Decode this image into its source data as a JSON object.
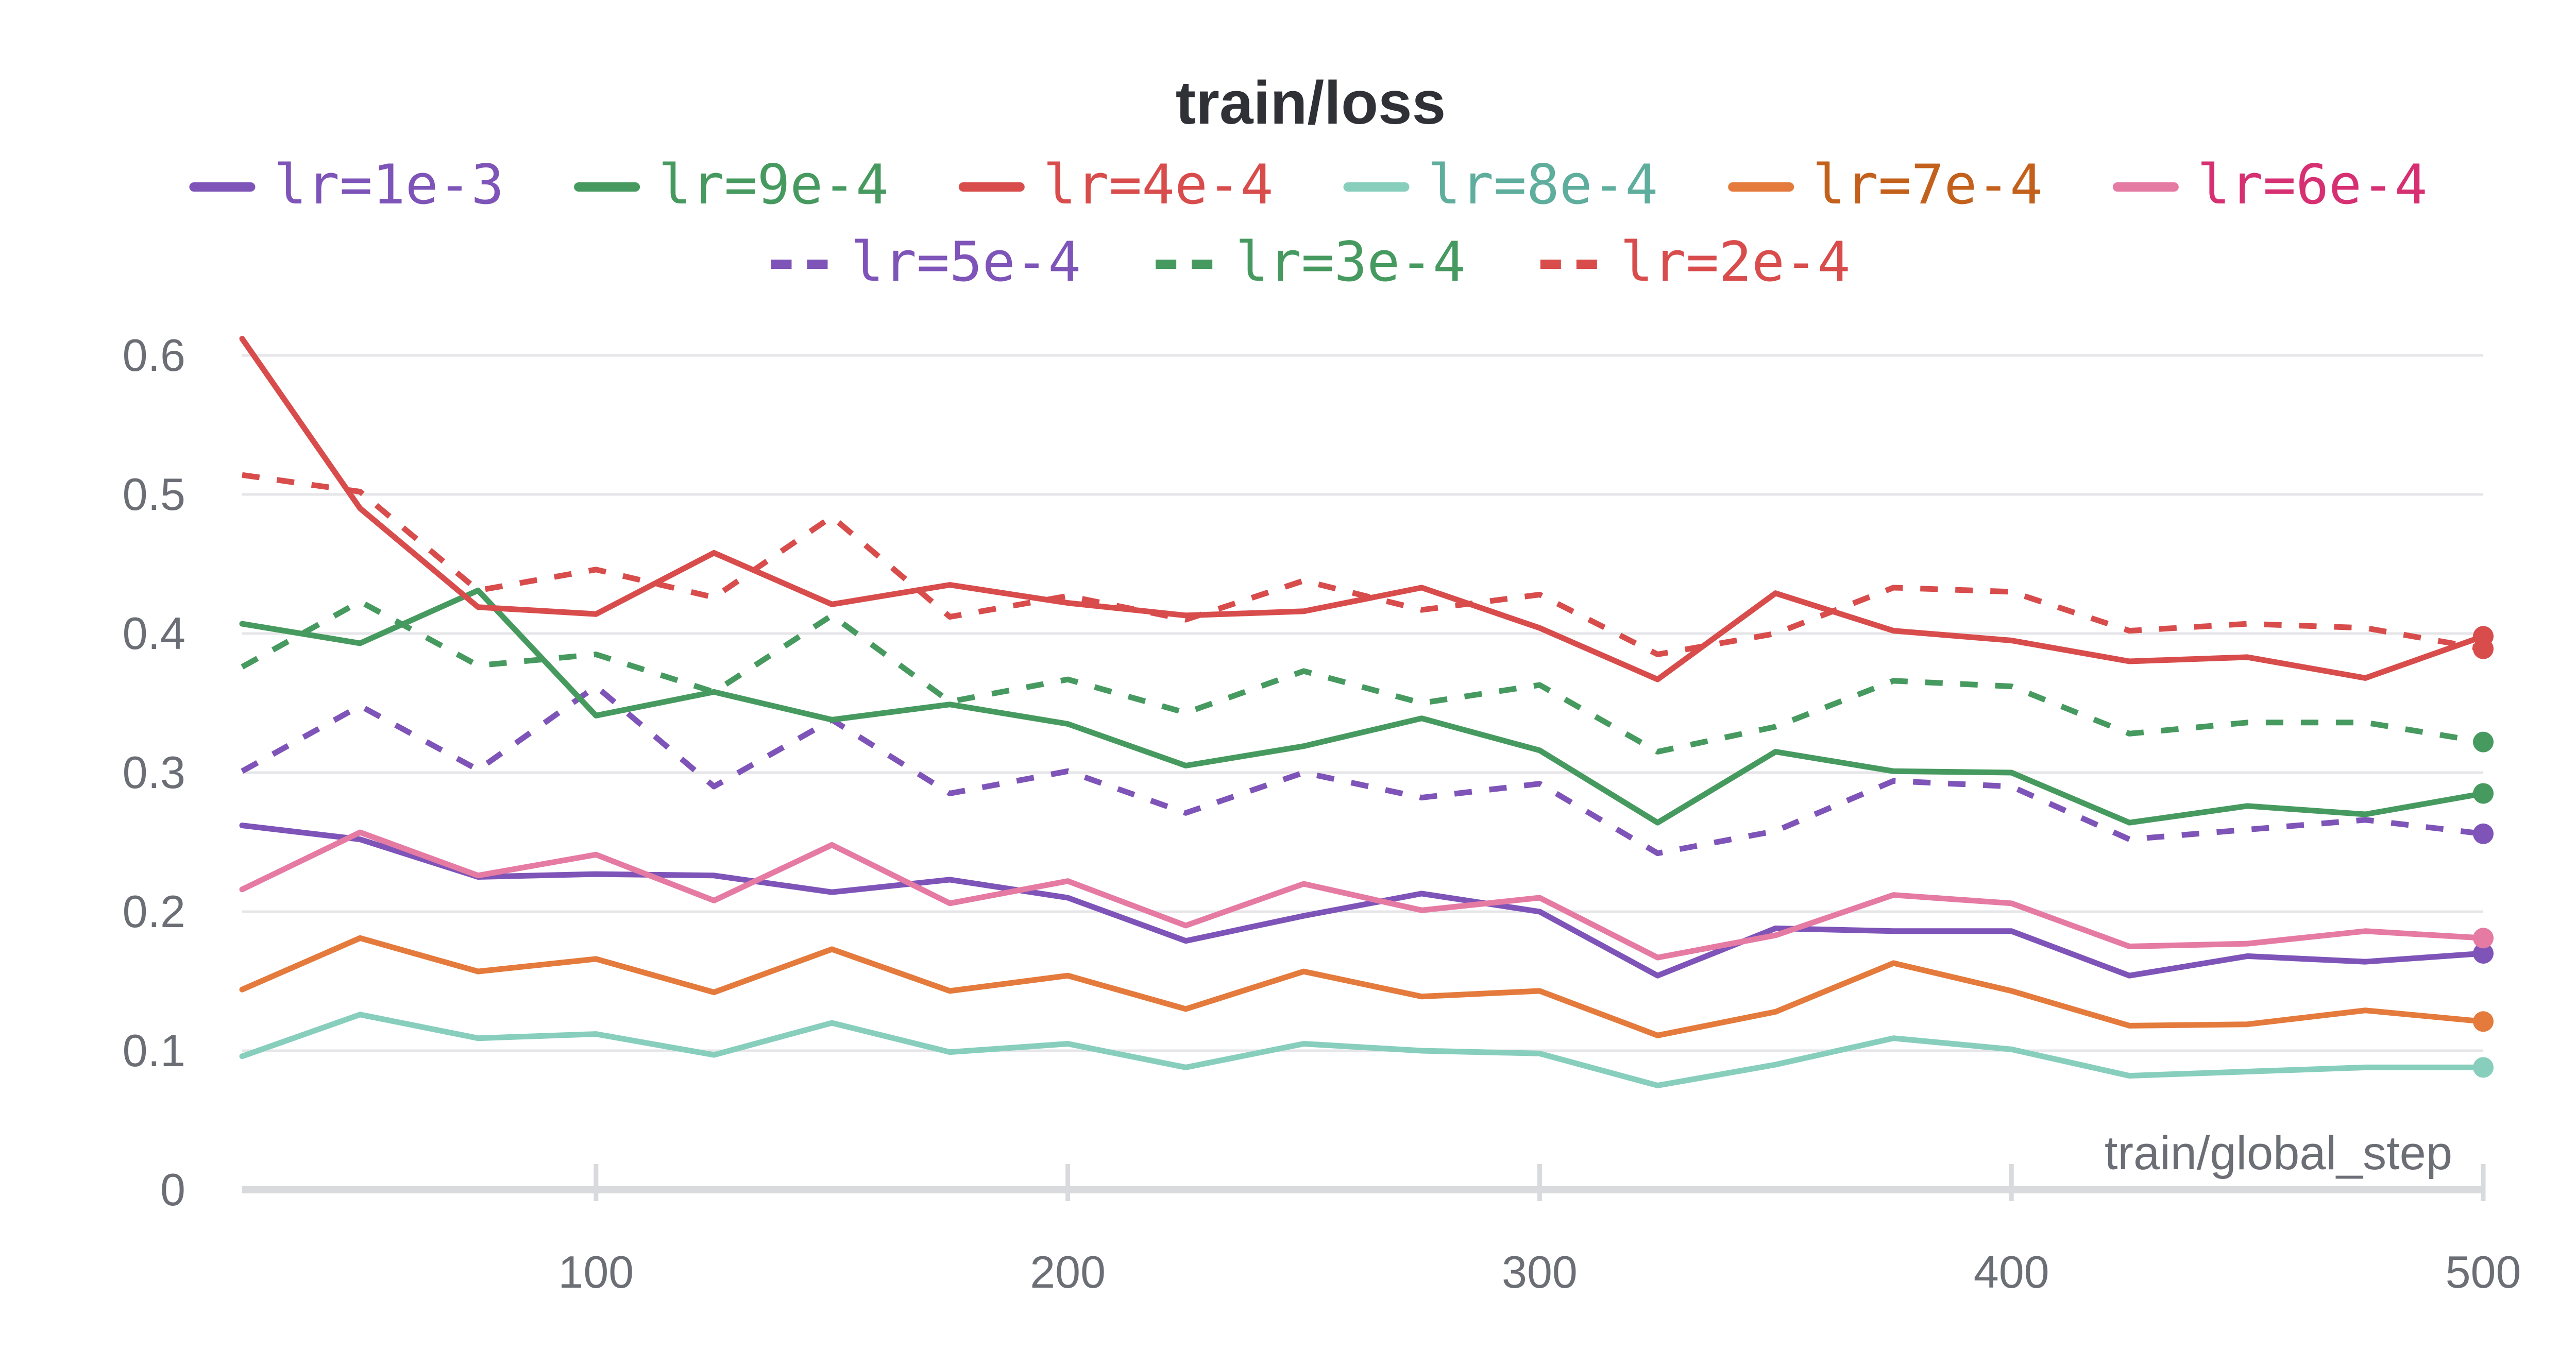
{
  "chart_data": {
    "type": "line",
    "title": "train/loss",
    "xlabel": "train/global_step",
    "ylabel": "",
    "xlim": [
      25,
      500
    ],
    "ylim": [
      0,
      0.6
    ],
    "xticks": [
      100,
      200,
      300,
      400,
      500
    ],
    "yticks": [
      0,
      0.1,
      0.2,
      0.3,
      0.4,
      0.5,
      0.6
    ],
    "ytick_labels": [
      "0",
      "0.1",
      "0.2",
      "0.3",
      "0.4",
      "0.5",
      "0.6"
    ],
    "grid": "horizontal",
    "legend_position": "top",
    "x": [
      25,
      50,
      75,
      100,
      125,
      150,
      175,
      200,
      225,
      250,
      275,
      300,
      325,
      350,
      375,
      400,
      425,
      450,
      475,
      500
    ],
    "series": [
      {
        "name": "lr=1e-3",
        "color": "#7e54b8",
        "text_color": "#7e54b8",
        "dash": false,
        "values": [
          0.262,
          0.252,
          0.225,
          0.227,
          0.226,
          0.214,
          0.223,
          0.21,
          0.179,
          0.197,
          0.213,
          0.2,
          0.154,
          0.188,
          0.186,
          0.186,
          0.154,
          0.168,
          0.164,
          0.17
        ]
      },
      {
        "name": "lr=9e-4",
        "color": "#479a5f",
        "text_color": "#479a5f",
        "dash": false,
        "values": [
          0.407,
          0.393,
          0.431,
          0.341,
          0.358,
          0.338,
          0.349,
          0.335,
          0.305,
          0.319,
          0.339,
          0.316,
          0.264,
          0.315,
          0.301,
          0.3,
          0.264,
          0.276,
          0.27,
          0.285
        ]
      },
      {
        "name": "lr=4e-4",
        "color": "#d84c4c",
        "text_color": "#d84c4c",
        "dash": false,
        "values": [
          0.612,
          0.49,
          0.419,
          0.414,
          0.458,
          0.421,
          0.435,
          0.422,
          0.413,
          0.416,
          0.433,
          0.404,
          0.367,
          0.429,
          0.402,
          0.395,
          0.38,
          0.383,
          0.368,
          0.398
        ]
      },
      {
        "name": "lr=8e-4",
        "color": "#87cebd",
        "text_color": "#5fae9d",
        "dash": false,
        "values": [
          0.096,
          0.126,
          0.109,
          0.112,
          0.097,
          0.12,
          0.099,
          0.105,
          0.088,
          0.105,
          0.1,
          0.098,
          0.075,
          0.09,
          0.109,
          0.101,
          0.082,
          0.085,
          0.088,
          0.088
        ]
      },
      {
        "name": "lr=7e-4",
        "color": "#e47a3c",
        "text_color": "#c3611c",
        "dash": false,
        "values": [
          0.144,
          0.181,
          0.157,
          0.166,
          0.142,
          0.173,
          0.143,
          0.154,
          0.13,
          0.157,
          0.139,
          0.143,
          0.111,
          0.128,
          0.163,
          0.143,
          0.118,
          0.119,
          0.129,
          0.121
        ]
      },
      {
        "name": "lr=6e-4",
        "color": "#e57aa3",
        "text_color": "#d62f72",
        "dash": false,
        "values": [
          0.216,
          0.257,
          0.226,
          0.241,
          0.208,
          0.248,
          0.206,
          0.222,
          0.19,
          0.22,
          0.201,
          0.21,
          0.167,
          0.183,
          0.212,
          0.206,
          0.175,
          0.177,
          0.186,
          0.181
        ]
      },
      {
        "name": "lr=5e-4",
        "color": "#7e54b8",
        "text_color": "#7e54b8",
        "dash": true,
        "values": [
          0.301,
          0.348,
          0.302,
          0.362,
          0.29,
          0.338,
          0.285,
          0.301,
          0.271,
          0.3,
          0.282,
          0.292,
          0.242,
          0.258,
          0.294,
          0.29,
          0.252,
          0.259,
          0.266,
          0.256
        ]
      },
      {
        "name": "lr=3e-4",
        "color": "#479a5f",
        "text_color": "#479a5f",
        "dash": true,
        "values": [
          0.376,
          0.423,
          0.377,
          0.385,
          0.358,
          0.413,
          0.351,
          0.367,
          0.343,
          0.373,
          0.35,
          0.363,
          0.315,
          0.333,
          0.366,
          0.362,
          0.328,
          0.336,
          0.336,
          0.322
        ]
      },
      {
        "name": "lr=2e-4",
        "color": "#d84c4c",
        "text_color": "#d84c4c",
        "dash": true,
        "values": [
          0.514,
          0.502,
          0.431,
          0.446,
          0.426,
          0.484,
          0.412,
          0.427,
          0.41,
          0.438,
          0.417,
          0.428,
          0.385,
          0.4,
          0.433,
          0.43,
          0.402,
          0.407,
          0.404,
          0.389
        ]
      }
    ]
  }
}
